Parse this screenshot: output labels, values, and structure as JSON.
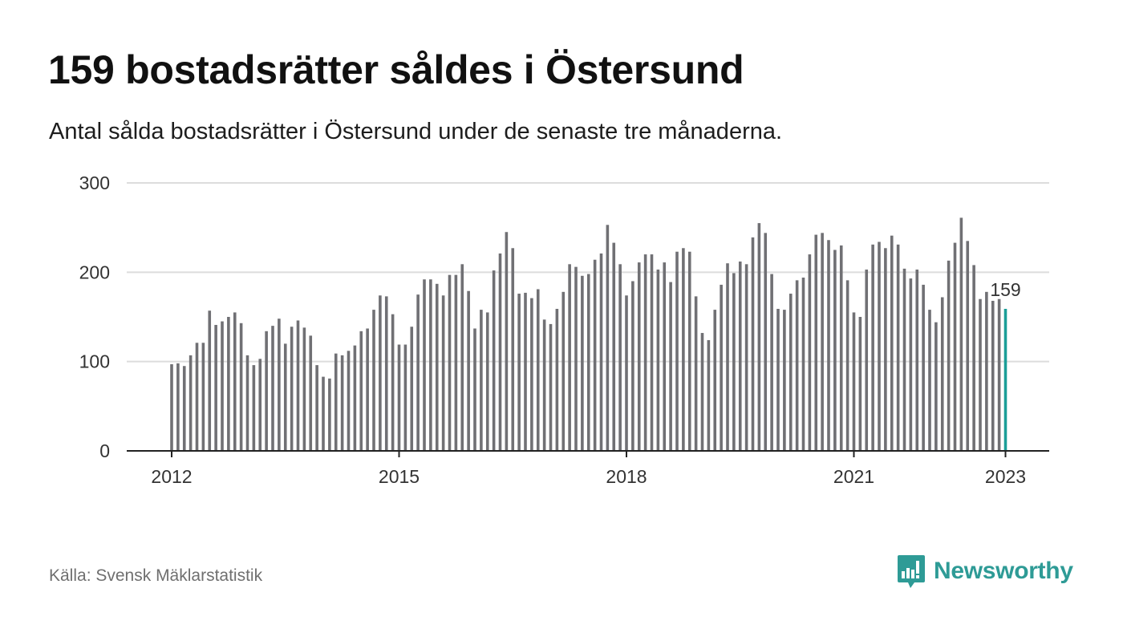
{
  "title": "159 bostadsrätter såldes i Östersund",
  "subtitle": "Antal sålda bostadsrätter i Östersund under de senaste tre månaderna.",
  "source": "Källa: Svensk Mäklarstatistik",
  "brand": {
    "name": "Newsworthy",
    "icon": "newsworthy-logo-icon",
    "color": "#2e9b96"
  },
  "colors": {
    "bar": "#707074",
    "highlight": "#1a9e98",
    "grid": "#dcdcdc",
    "axis": "#222222"
  },
  "chart_data": {
    "type": "bar",
    "title": "159 bostadsrätter såldes i Östersund",
    "subtitle": "Antal sålda bostadsrätter i Östersund under de senaste tre månaderna.",
    "xlabel": "",
    "ylabel": "",
    "ylim": [
      0,
      300
    ],
    "yticks": [
      0,
      100,
      200,
      300
    ],
    "xticks": [
      "2012",
      "2015",
      "2018",
      "2021",
      "2023"
    ],
    "x_start": "2012-01",
    "x_end": "2023-01",
    "grid": true,
    "annotation": {
      "label": "159",
      "index": 132
    },
    "values": [
      97,
      98,
      95,
      107,
      121,
      121,
      157,
      141,
      145,
      150,
      155,
      143,
      107,
      96,
      103,
      134,
      140,
      148,
      120,
      139,
      146,
      138,
      129,
      96,
      83,
      81,
      109,
      107,
      112,
      118,
      134,
      137,
      158,
      174,
      173,
      153,
      119,
      119,
      139,
      175,
      192,
      192,
      187,
      174,
      197,
      197,
      209,
      179,
      137,
      158,
      155,
      202,
      221,
      245,
      227,
      176,
      177,
      171,
      181,
      147,
      142,
      159,
      178,
      209,
      206,
      196,
      198,
      214,
      221,
      253,
      233,
      209,
      174,
      190,
      211,
      220,
      220,
      203,
      211,
      189,
      223,
      227,
      223,
      173,
      132,
      124,
      158,
      186,
      210,
      199,
      212,
      209,
      239,
      255,
      244,
      198,
      159,
      158,
      176,
      191,
      194,
      220,
      242,
      244,
      236,
      225,
      230,
      191,
      155,
      150,
      203,
      231,
      234,
      227,
      241,
      231,
      204,
      193,
      203,
      186,
      158,
      144,
      172,
      213,
      233,
      261,
      235,
      208,
      170,
      178,
      168,
      170,
      159
    ]
  }
}
